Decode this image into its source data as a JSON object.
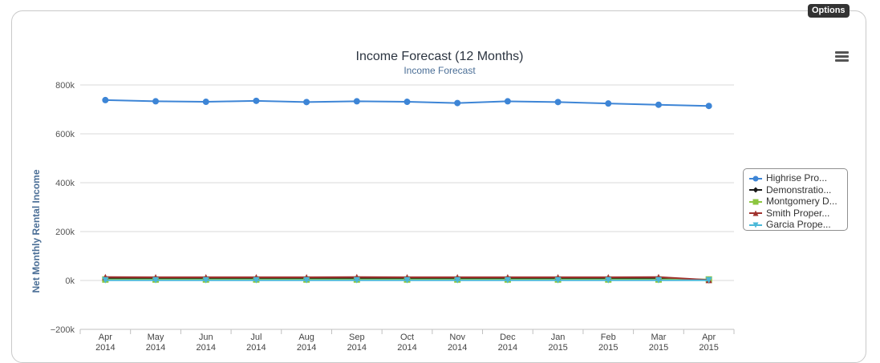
{
  "options_label": "Options",
  "chart_data": {
    "type": "line",
    "title": "Income Forecast (12 Months)",
    "subtitle": "Income Forecast",
    "ylabel": "Net Monthly Rental Income",
    "xlabel": "",
    "ylim": [
      -200000,
      800000
    ],
    "yticks": [
      -200000,
      0,
      200000,
      400000,
      600000,
      800000
    ],
    "ytick_labels": [
      "−200k",
      "0k",
      "200k",
      "400k",
      "600k",
      "800k"
    ],
    "categories": [
      [
        "Apr",
        "2014"
      ],
      [
        "May",
        "2014"
      ],
      [
        "Jun",
        "2014"
      ],
      [
        "Jul",
        "2014"
      ],
      [
        "Aug",
        "2014"
      ],
      [
        "Sep",
        "2014"
      ],
      [
        "Oct",
        "2014"
      ],
      [
        "Nov",
        "2014"
      ],
      [
        "Dec",
        "2014"
      ],
      [
        "Jan",
        "2015"
      ],
      [
        "Feb",
        "2015"
      ],
      [
        "Mar",
        "2015"
      ],
      [
        "Apr",
        "2015"
      ]
    ],
    "grid": "horizontal",
    "legend_position": "right",
    "series": [
      {
        "name": "Highrise Pro...",
        "color": "#3d85d6",
        "marker": "circle",
        "values": [
          738000,
          733000,
          731000,
          735000,
          730000,
          733000,
          731000,
          726000,
          733000,
          730000,
          724000,
          719000,
          714000
        ]
      },
      {
        "name": "Demonstratio...",
        "color": "#1a1a1a",
        "marker": "diamond",
        "values": [
          9000,
          8000,
          8000,
          8000,
          8000,
          9000,
          8000,
          8000,
          8000,
          8000,
          8000,
          9000,
          1000
        ]
      },
      {
        "name": "Montgomery D...",
        "color": "#8cc63f",
        "marker": "square",
        "values": [
          4000,
          4000,
          4000,
          4000,
          4000,
          4000,
          4000,
          4000,
          4000,
          4000,
          4000,
          4000,
          4000
        ]
      },
      {
        "name": "Smith Proper...",
        "color": "#a0322e",
        "marker": "triangle",
        "values": [
          14000,
          13000,
          13000,
          13000,
          13000,
          14000,
          13000,
          13000,
          13000,
          13000,
          13000,
          14000,
          2000
        ]
      },
      {
        "name": "Garcia Prope...",
        "color": "#4ab8d8",
        "marker": "triangle-down",
        "values": [
          1000,
          1000,
          1000,
          1000,
          1000,
          1000,
          1000,
          1000,
          1000,
          1000,
          1000,
          1000,
          1000
        ]
      }
    ]
  }
}
